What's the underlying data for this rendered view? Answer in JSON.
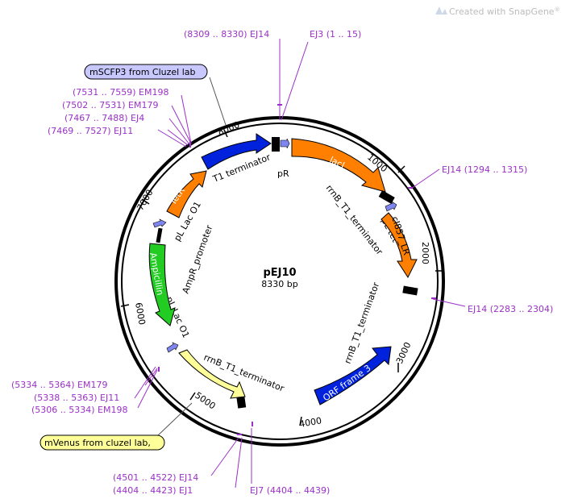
{
  "watermark": {
    "text": "Created with SnapGene",
    "mark": "®"
  },
  "plasmid": {
    "name": "pEJ10",
    "length_label": "8330 bp"
  },
  "ticks": {
    "t1000": "1000",
    "t2000": "2000",
    "t3000": "3000",
    "t4000": "4000",
    "t5000": "5000",
    "t6000": "6000",
    "t7000": "7000",
    "t8000": "8000"
  },
  "features": {
    "t1_terminator": "T1 terminator",
    "pR": "pR",
    "lacI": "lacI",
    "rrnB_1": "rrnB_T1_terminator",
    "pL_tet": "pL tet",
    "ci857": "cI857_LR",
    "rrnB_2": "rrnB_T1_terminator",
    "orf3": "ORF frame 3",
    "rrnB_3": "rrnB_T1_terminator",
    "pL_lac_lower": "pL Lac O1",
    "ampicillin": "Ampicillin",
    "ampR_promoter": "AmpR_promoter",
    "pL_lac_upper": "pL Lac O1",
    "tetR": "TetR"
  },
  "callouts": {
    "mscfp3": "mSCFP3 from Cluzel lab",
    "mvenus": "mVenus from cluzel lab,"
  },
  "sites": {
    "ej14_top": "(8309 .. 8330)  EJ14",
    "ej3": "EJ3  (1 .. 15)",
    "em198_top": "(7531 .. 7559)  EM198",
    "em179_top": "(7502 .. 7531)  EM179",
    "ej4": "(7467 .. 7488)  EJ4",
    "ej11_top": "(7469 .. 7527)  EJ11",
    "ej14_right1": "EJ14  (1294 .. 1315)",
    "ej14_right2": "EJ14  (2283 .. 2304)",
    "em179_bot": "(5334 .. 5364)  EM179",
    "ej11_bot": "(5338 .. 5363)  EJ11",
    "em198_bot": "(5306 .. 5334)  EM198",
    "ej14_bot": "(4501 .. 4522)  EJ14",
    "ej1": "(4404 .. 4423)  EJ1",
    "ej7": "EJ7  (4404 .. 4439)"
  }
}
